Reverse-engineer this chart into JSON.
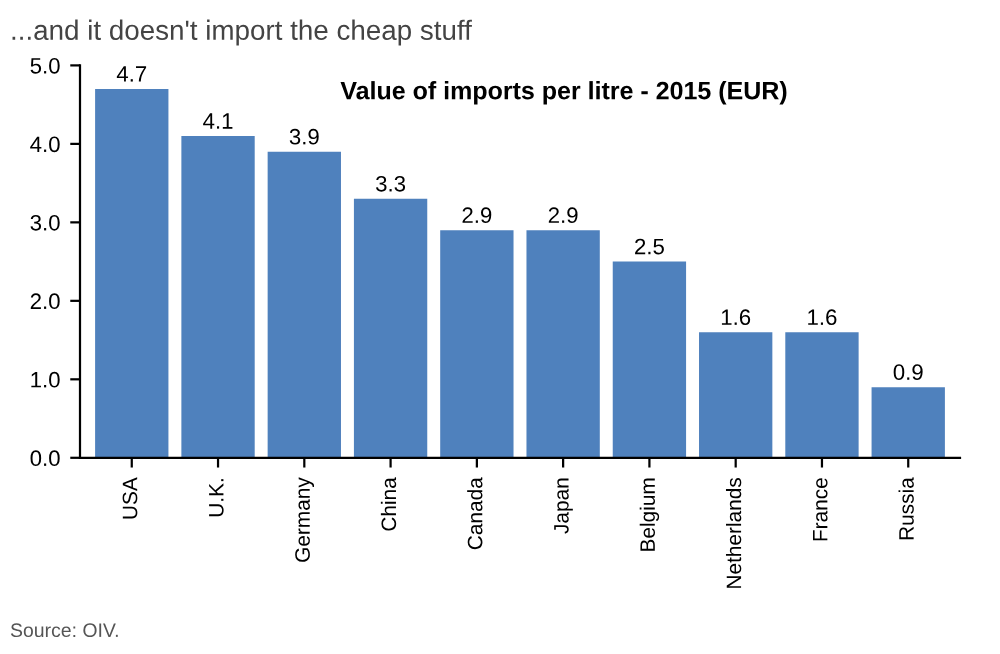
{
  "chart_data": {
    "type": "bar",
    "title": "...and it doesn't import the cheap stuff",
    "subtitle": "Value of imports per litre - 2015 (EUR)",
    "categories": [
      "USA",
      "U.K.",
      "Germany",
      "China",
      "Canada",
      "Japan",
      "Belgium",
      "Netherlands",
      "France",
      "Russia"
    ],
    "values": [
      4.7,
      4.1,
      3.9,
      3.3,
      2.9,
      2.9,
      2.5,
      1.6,
      1.6,
      0.9
    ],
    "color": "#4f81bd",
    "data_labels": true,
    "ylim": [
      0,
      5
    ],
    "yticks": [
      {
        "value": 0,
        "label": "0.0"
      },
      {
        "value": 1,
        "label": "1.0"
      },
      {
        "value": 2,
        "label": "2.0"
      },
      {
        "value": 3,
        "label": "3.0"
      },
      {
        "value": 4,
        "label": "4.0"
      },
      {
        "value": 5,
        "label": "5.0"
      }
    ],
    "grid": false,
    "annotations": [
      "Source: OIV."
    ]
  }
}
